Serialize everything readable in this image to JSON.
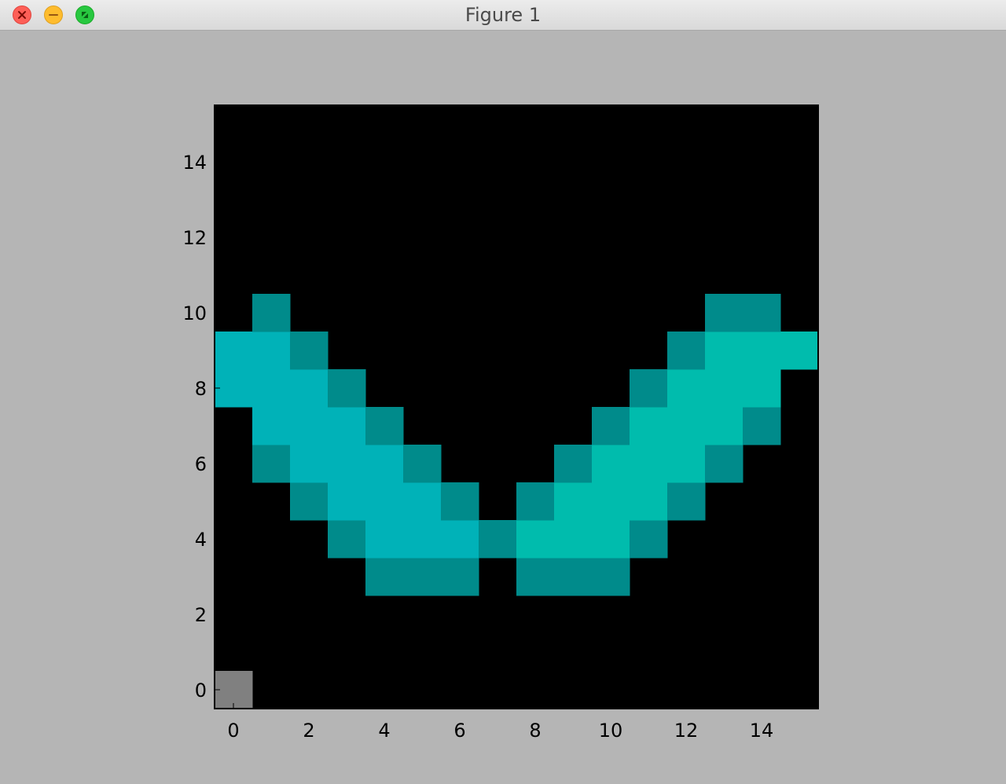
{
  "window": {
    "title": "Figure 1",
    "buttons": [
      "close",
      "minimize",
      "maximize"
    ]
  },
  "colors": {
    "background": "#000000",
    "edge": "#008b8b",
    "left_fill": "#00b2b8",
    "right_fill": "#00bcad",
    "corner": "#808080",
    "figure_bg": "#b5b5b5"
  },
  "chart_data": {
    "type": "heatmap",
    "title": "",
    "xlabel": "",
    "ylabel": "",
    "xlim": [
      -0.5,
      15.5
    ],
    "ylim": [
      -0.5,
      15.5
    ],
    "origin": "lower",
    "xticks": [
      "0",
      "2",
      "4",
      "6",
      "8",
      "10",
      "12",
      "14"
    ],
    "yticks": [
      "0",
      "2",
      "4",
      "6",
      "8",
      "10",
      "12",
      "14"
    ],
    "legend": "none",
    "grid": false,
    "color_key": {
      "0": "background",
      "1": "edge",
      "2": "left_fill",
      "3": "right_fill",
      "4": "corner"
    },
    "rows_bottom_to_top": [
      [
        4,
        0,
        0,
        0,
        0,
        0,
        0,
        0,
        0,
        0,
        0,
        0,
        0,
        0,
        0,
        0
      ],
      [
        0,
        0,
        0,
        0,
        0,
        0,
        0,
        0,
        0,
        0,
        0,
        0,
        0,
        0,
        0,
        0
      ],
      [
        0,
        0,
        0,
        0,
        0,
        0,
        0,
        0,
        0,
        0,
        0,
        0,
        0,
        0,
        0,
        0
      ],
      [
        0,
        0,
        0,
        0,
        1,
        1,
        1,
        0,
        1,
        1,
        1,
        0,
        0,
        0,
        0,
        0
      ],
      [
        0,
        0,
        0,
        1,
        2,
        2,
        2,
        1,
        3,
        3,
        3,
        1,
        0,
        0,
        0,
        0
      ],
      [
        0,
        0,
        1,
        2,
        2,
        2,
        1,
        0,
        1,
        3,
        3,
        3,
        1,
        0,
        0,
        0
      ],
      [
        0,
        1,
        2,
        2,
        2,
        1,
        0,
        0,
        0,
        1,
        3,
        3,
        3,
        1,
        0,
        0
      ],
      [
        0,
        2,
        2,
        2,
        1,
        0,
        0,
        0,
        0,
        0,
        1,
        3,
        3,
        3,
        1,
        0
      ],
      [
        2,
        2,
        2,
        1,
        0,
        0,
        0,
        0,
        0,
        0,
        0,
        1,
        3,
        3,
        3,
        0
      ],
      [
        2,
        2,
        1,
        0,
        0,
        0,
        0,
        0,
        0,
        0,
        0,
        0,
        1,
        3,
        3,
        3
      ],
      [
        0,
        1,
        0,
        0,
        0,
        0,
        0,
        0,
        0,
        0,
        0,
        0,
        0,
        1,
        1,
        0
      ],
      [
        0,
        0,
        0,
        0,
        0,
        0,
        0,
        0,
        0,
        0,
        0,
        0,
        0,
        0,
        0,
        0
      ],
      [
        0,
        0,
        0,
        0,
        0,
        0,
        0,
        0,
        0,
        0,
        0,
        0,
        0,
        0,
        0,
        0
      ],
      [
        0,
        0,
        0,
        0,
        0,
        0,
        0,
        0,
        0,
        0,
        0,
        0,
        0,
        0,
        0,
        0
      ],
      [
        0,
        0,
        0,
        0,
        0,
        0,
        0,
        0,
        0,
        0,
        0,
        0,
        0,
        0,
        0,
        0
      ],
      [
        0,
        0,
        0,
        0,
        0,
        0,
        0,
        0,
        0,
        0,
        0,
        0,
        0,
        0,
        0,
        0
      ]
    ]
  }
}
